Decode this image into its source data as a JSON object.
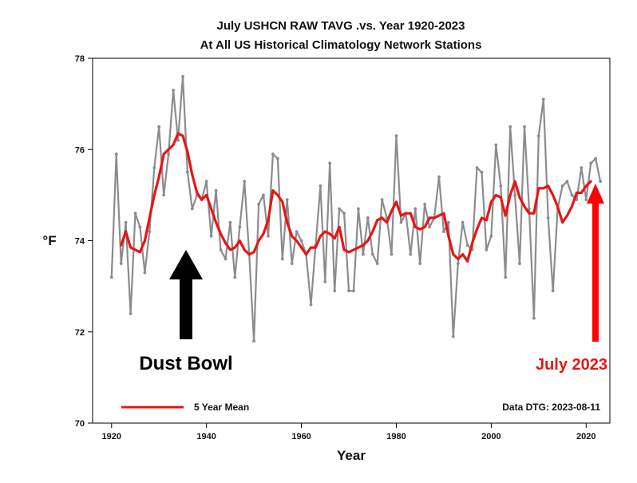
{
  "chart_data": {
    "type": "line",
    "title": "July USHCN RAW TAVG .vs. Year 1920-2023",
    "subtitle": "At All US Historical Climatology Network Stations",
    "xlabel": "Year",
    "ylabel": "°F",
    "xlim": [
      1916,
      2025
    ],
    "ylim": [
      70,
      78
    ],
    "x_ticks": [
      1920,
      1940,
      1960,
      1980,
      2000,
      2020
    ],
    "y_ticks": [
      70,
      72,
      74,
      76,
      78
    ],
    "grid": false,
    "legend_position": "bottom-left",
    "series": [
      {
        "name": "",
        "color": "#8c8c8c",
        "x": [
          1920,
          1921,
          1922,
          1923,
          1924,
          1925,
          1926,
          1927,
          1928,
          1929,
          1930,
          1931,
          1932,
          1933,
          1934,
          1935,
          1936,
          1937,
          1938,
          1939,
          1940,
          1941,
          1942,
          1943,
          1944,
          1945,
          1946,
          1947,
          1948,
          1949,
          1950,
          1951,
          1952,
          1953,
          1954,
          1955,
          1956,
          1957,
          1958,
          1959,
          1960,
          1961,
          1962,
          1963,
          1964,
          1965,
          1966,
          1967,
          1968,
          1969,
          1970,
          1971,
          1972,
          1973,
          1974,
          1975,
          1976,
          1977,
          1978,
          1979,
          1980,
          1981,
          1982,
          1983,
          1984,
          1985,
          1986,
          1987,
          1988,
          1989,
          1990,
          1991,
          1992,
          1993,
          1994,
          1995,
          1996,
          1997,
          1998,
          1999,
          2000,
          2001,
          2002,
          2003,
          2004,
          2005,
          2006,
          2007,
          2008,
          2009,
          2010,
          2011,
          2012,
          2013,
          2014,
          2015,
          2016,
          2017,
          2018,
          2019,
          2020,
          2021,
          2022,
          2023
        ],
        "values": [
          73.2,
          75.9,
          73.5,
          74.4,
          72.4,
          74.6,
          74.3,
          73.3,
          74.2,
          75.6,
          76.5,
          75.0,
          75.9,
          77.3,
          76.2,
          77.6,
          75.5,
          74.7,
          75.0,
          74.9,
          75.3,
          74.1,
          75.1,
          73.8,
          73.6,
          74.4,
          73.2,
          74.3,
          75.3,
          73.7,
          71.8,
          74.8,
          75.0,
          74.1,
          75.9,
          75.8,
          73.6,
          74.9,
          73.5,
          74.2,
          74.0,
          73.7,
          72.6,
          73.9,
          75.2,
          73.1,
          75.7,
          72.9,
          74.7,
          74.6,
          72.9,
          72.9,
          74.7,
          73.7,
          74.5,
          73.7,
          73.5,
          74.9,
          74.5,
          73.7,
          76.3,
          74.4,
          74.6,
          73.7,
          74.7,
          73.5,
          74.8,
          74.3,
          74.5,
          75.4,
          74.2,
          74.4,
          71.9,
          73.5,
          74.4,
          73.9,
          73.8,
          75.6,
          75.5,
          73.8,
          74.1,
          76.1,
          75.2,
          73.2,
          76.5,
          75.0,
          73.5,
          76.5,
          74.7,
          72.3,
          76.3,
          77.1,
          74.5,
          72.9,
          74.7,
          75.2,
          75.3,
          75.0,
          74.9,
          75.6,
          74.9,
          75.7,
          75.8,
          75.3
        ]
      },
      {
        "name": "5 Year Mean",
        "color": "#e81515",
        "x": [
          1922,
          1923,
          1924,
          1925,
          1926,
          1927,
          1928,
          1929,
          1930,
          1931,
          1932,
          1933,
          1934,
          1935,
          1936,
          1937,
          1938,
          1939,
          1940,
          1941,
          1942,
          1943,
          1944,
          1945,
          1946,
          1947,
          1948,
          1949,
          1950,
          1951,
          1952,
          1953,
          1954,
          1955,
          1956,
          1957,
          1958,
          1959,
          1960,
          1961,
          1962,
          1963,
          1964,
          1965,
          1966,
          1967,
          1968,
          1969,
          1970,
          1971,
          1972,
          1973,
          1974,
          1975,
          1976,
          1977,
          1978,
          1979,
          1980,
          1981,
          1982,
          1983,
          1984,
          1985,
          1986,
          1987,
          1988,
          1989,
          1990,
          1991,
          1992,
          1993,
          1994,
          1995,
          1996,
          1997,
          1998,
          1999,
          2000,
          2001,
          2002,
          2003,
          2004,
          2005,
          2006,
          2007,
          2008,
          2009,
          2010,
          2011,
          2012,
          2013,
          2014,
          2015,
          2016,
          2017,
          2018,
          2019,
          2020,
          2021
        ],
        "values": [
          73.9,
          74.2,
          73.85,
          73.8,
          73.75,
          74.0,
          74.5,
          75.0,
          75.4,
          75.9,
          76.0,
          76.1,
          76.35,
          76.3,
          75.95,
          75.45,
          75.05,
          74.9,
          75.0,
          74.7,
          74.4,
          74.15,
          73.95,
          73.8,
          73.85,
          74.0,
          73.8,
          73.7,
          73.75,
          74.0,
          74.15,
          74.45,
          75.1,
          75.0,
          74.85,
          74.4,
          74.1,
          74.0,
          73.85,
          73.7,
          73.85,
          73.85,
          74.1,
          74.2,
          74.15,
          74.05,
          74.3,
          73.8,
          73.75,
          73.8,
          73.85,
          73.9,
          74.0,
          74.2,
          74.45,
          74.5,
          74.4,
          74.65,
          74.85,
          74.55,
          74.6,
          74.6,
          74.3,
          74.25,
          74.3,
          74.5,
          74.5,
          74.55,
          74.6,
          74.1,
          73.7,
          73.6,
          73.7,
          73.55,
          73.95,
          74.25,
          74.5,
          74.45,
          74.85,
          75.0,
          74.95,
          74.55,
          75.0,
          75.3,
          74.95,
          74.75,
          74.6,
          74.6,
          75.15,
          75.15,
          75.2,
          75.0,
          74.75,
          74.4,
          74.55,
          74.75,
          75.05,
          75.05,
          75.2,
          75.3
        ]
      }
    ],
    "legend": [
      {
        "label": "5 Year Mean",
        "color": "#e81515"
      }
    ],
    "annotations": [
      {
        "text": "Dust Bowl",
        "arrow_color": "#000000",
        "arrow_x_year": 1936
      },
      {
        "text": "July 2023",
        "arrow_color": "#ff0000",
        "arrow_x_year": 2023
      }
    ],
    "footer_note": "Data DTG: 2023-08-11"
  }
}
